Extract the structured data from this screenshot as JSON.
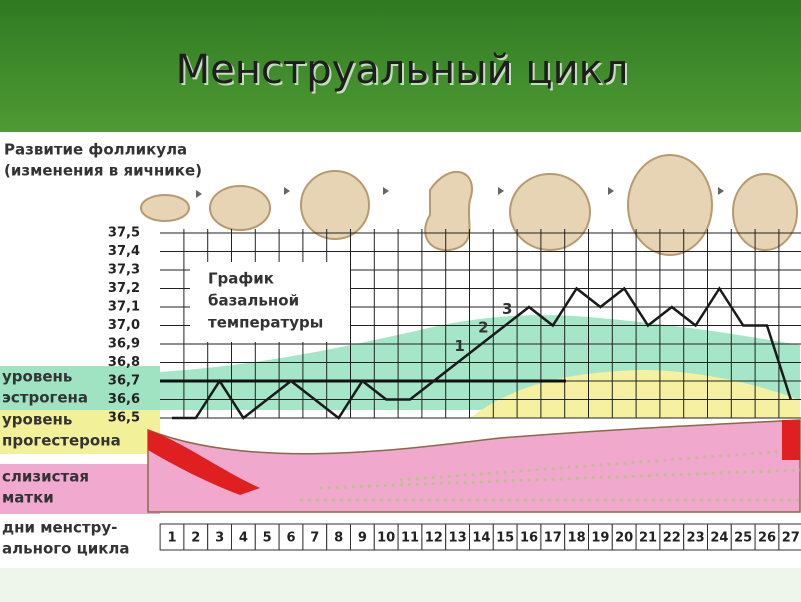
{
  "chart_data": {
    "type": "line",
    "title": "Менструальный цикл",
    "ovary_label": [
      "Развитие фолликула",
      "(изменения в яичнике)"
    ],
    "chart_label": [
      "График",
      "базальной",
      "температуры"
    ],
    "annotations": [
      "1",
      "2",
      "3"
    ],
    "estrogen_label": [
      "уровень",
      "эстрогена"
    ],
    "progesterone_label": [
      "уровень",
      "прогестерона"
    ],
    "endometrium_label": [
      "слизистая",
      "матки"
    ],
    "days_label": [
      "дни менстру-",
      "ального цикла"
    ],
    "categories": [
      "1",
      "2",
      "3",
      "4",
      "5",
      "6",
      "7",
      "8",
      "9",
      "10",
      "11",
      "12",
      "13",
      "14",
      "15",
      "16",
      "17",
      "18",
      "19",
      "20",
      "21",
      "22",
      "23",
      "24",
      "25",
      "26",
      "27"
    ],
    "series": [
      {
        "color": "#1a1a1a",
        "values": [
          36.5,
          36.5,
          36.7,
          36.5,
          36.6,
          36.7,
          36.6,
          36.5,
          36.7,
          36.6,
          36.6,
          36.7,
          36.8,
          36.9,
          37.0,
          37.1,
          37.0,
          37.2,
          37.1,
          37.2,
          37.0,
          37.1,
          37.0,
          37.2,
          37.0,
          37.0,
          36.6
        ]
      }
    ],
    "coverline": 36.7,
    "ylim": [
      36.5,
      37.5
    ],
    "yticks": [
      {
        "value": 37.5,
        "label": "37,5"
      },
      {
        "value": 37.4,
        "label": "37,4"
      },
      {
        "value": 37.3,
        "label": "37,3"
      },
      {
        "value": 37.2,
        "label": "37,2"
      },
      {
        "value": 37.1,
        "label": "37,1"
      },
      {
        "value": 37.0,
        "label": "37,0"
      },
      {
        "value": 36.9,
        "label": "36,9"
      },
      {
        "value": 36.8,
        "label": "36,8"
      },
      {
        "value": 36.7,
        "label": "36,7"
      },
      {
        "value": 36.6,
        "label": "36,6"
      },
      {
        "value": 36.5,
        "label": "36,5"
      }
    ],
    "grid": true
  }
}
